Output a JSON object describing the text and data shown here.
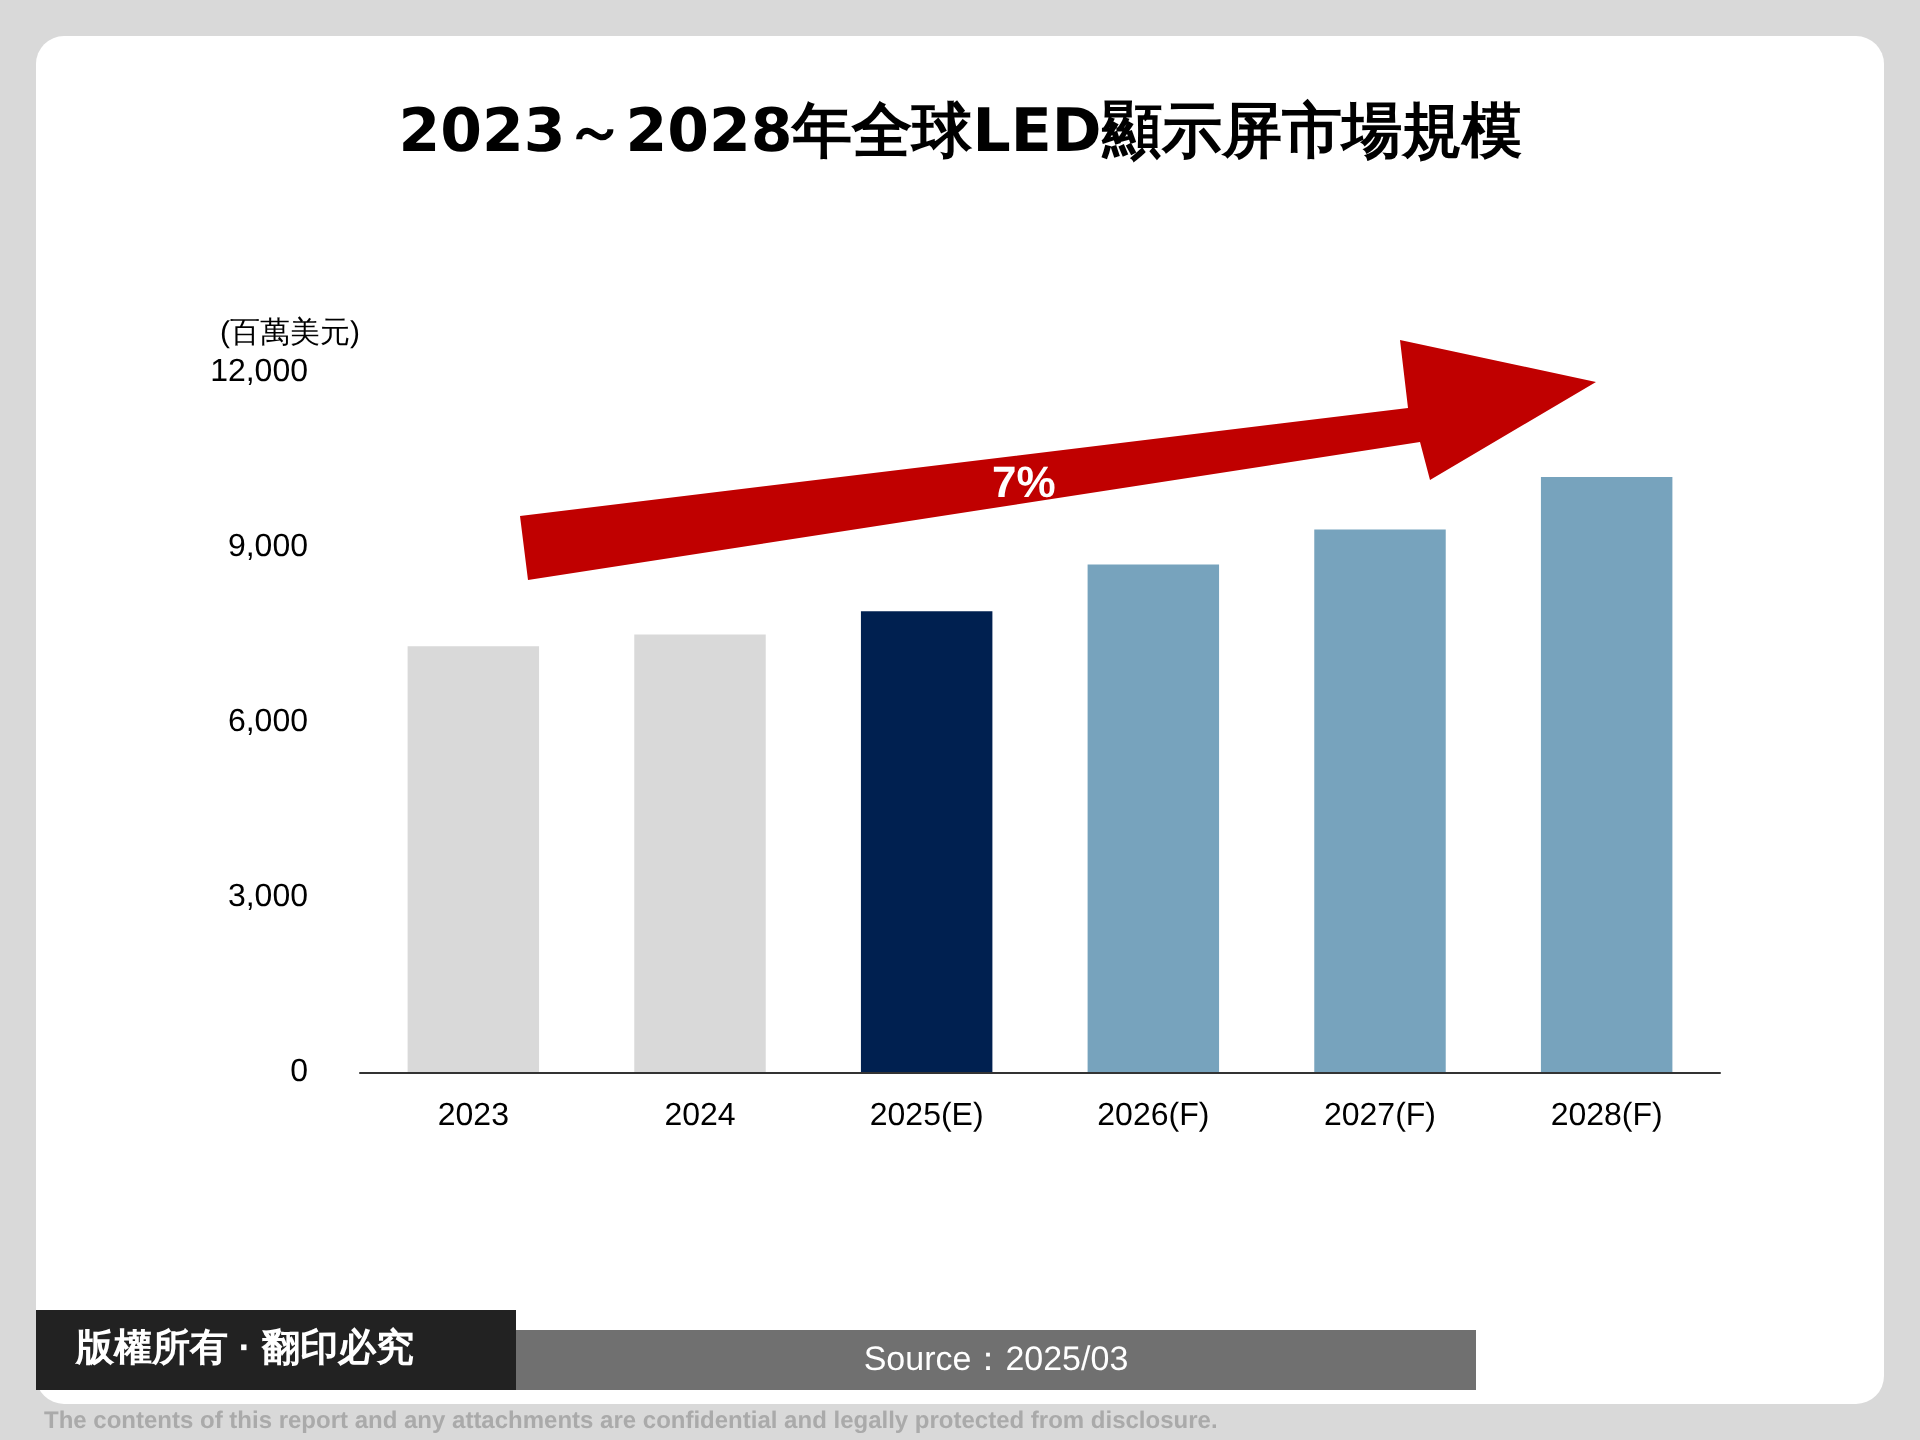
{
  "chart_data": {
    "type": "bar",
    "title": "2023～2028年全球LED顯示屏市場規模",
    "ylabel": "(百萬美元)",
    "categories": [
      "2023",
      "2024",
      "2025(E)",
      "2026(F)",
      "2027(F)",
      "2028(F)"
    ],
    "values": [
      7300,
      7500,
      7900,
      8700,
      9300,
      10200
    ],
    "colors": [
      "#d9d9d9",
      "#d9d9d9",
      "#002050",
      "#77a3bd",
      "#77a3bd",
      "#77a3bd"
    ],
    "ylim": [
      0,
      12000
    ],
    "yticks": [
      0,
      {
        "value": 3000,
        "label": "3,000"
      },
      {
        "value": 6000,
        "label": "6,000"
      },
      {
        "value": 9000,
        "label": "9,000"
      },
      {
        "value": 12000,
        "label": "12,000"
      }
    ],
    "grid": false,
    "annotations": [
      "7%",
      "版權所有 · 翻印必究",
      "Source：2025/03",
      "The contents of this report and any attachments are confidential and legally protected from disclosure."
    ]
  }
}
